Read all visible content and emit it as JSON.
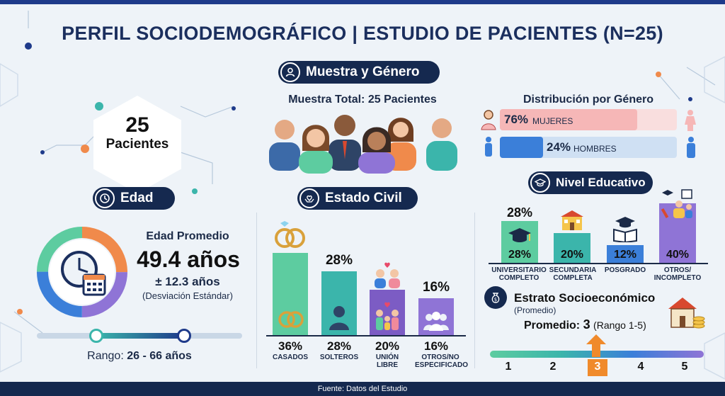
{
  "title": "PERFIL SOCIODEMOGRÁFICO | ESTUDIO DE PACIENTES (N=25)",
  "sample": {
    "count": "25",
    "count_label": "Pacientes",
    "section_label": "Muestra y Género",
    "total_text": "Muestra Total: 25 Pacientes"
  },
  "gender": {
    "heading": "Distribución por Género",
    "women": {
      "pct": "76%",
      "label": "MUJERES",
      "value": 76,
      "color": "#f6b7b7"
    },
    "men": {
      "pct": "24%",
      "label": "HOMBRES",
      "value": 24,
      "color": "#3b7fd9"
    }
  },
  "age": {
    "section_label": "Edad",
    "avg_label": "Edad Promedio",
    "avg_value": "49.4 años",
    "sd_value": "± 12.3 años",
    "sd_label": "(Desviación Estándar)",
    "range_label": "Rango:",
    "range_value": "26 - 66 años",
    "range_min": 26,
    "range_max": 66
  },
  "civil": {
    "section_label": "Estado Civil",
    "items": [
      {
        "pct": "36%",
        "label": "CASADOS",
        "value": 36,
        "color": "#5dcca0"
      },
      {
        "pct": "28%",
        "label": "SOLTEROS",
        "value": 28,
        "color": "#3bb5ab"
      },
      {
        "pct": "20%",
        "label": "UNIÓN LIBRE",
        "value": 20,
        "color": "#7c5cc4"
      },
      {
        "pct": "16%",
        "label": "OTROS/NO ESPECIFICADO",
        "value": 16,
        "color": "#8f74d6"
      }
    ]
  },
  "education": {
    "section_label": "Nivel Educativo",
    "top_pct": "28%",
    "items": [
      {
        "pct": "28%",
        "label": "UNIVERSITARIO COMPLETO",
        "value": 28,
        "color": "#5dcca0"
      },
      {
        "pct": "20%",
        "label": "SECUNDARIA COMPLETA",
        "value": 20,
        "color": "#3bb5ab"
      },
      {
        "pct": "12%",
        "label": "POSGRADO",
        "value": 12,
        "color": "#3b7fd9"
      },
      {
        "pct": "40%",
        "label": "OTROS/ INCOMPLETO",
        "value": 40,
        "color": "#8f74d6"
      }
    ]
  },
  "stratum": {
    "title": "Estrato Socioeconómico",
    "subtitle": "(Promedio)",
    "avg_label": "Promedio:",
    "avg_value": "3",
    "range_text": "(Rango 1-5)",
    "scale": [
      "1",
      "2",
      "3",
      "4",
      "5"
    ],
    "highlight": 3
  },
  "footer": "Fuente: Datos del Estudio"
}
